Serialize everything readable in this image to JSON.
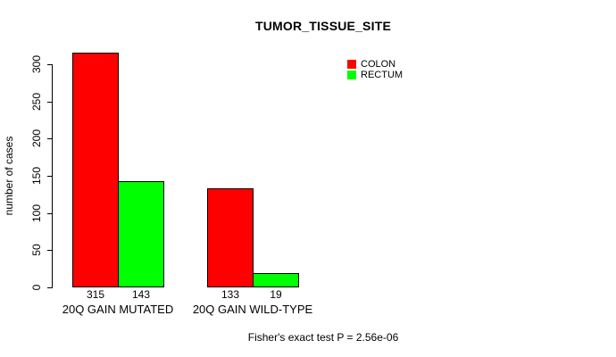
{
  "chart_data": {
    "type": "bar",
    "title": "TUMOR_TISSUE_SITE",
    "ylabel": "number of cases",
    "xlabel": "",
    "categories": [
      "20Q GAIN MUTATED",
      "20Q GAIN WILD-TYPE"
    ],
    "series": [
      {
        "name": "COLON",
        "color": "#ff0000",
        "values": [
          315,
          133
        ]
      },
      {
        "name": "RECTUM",
        "color": "#00ff00",
        "values": [
          143,
          19
        ]
      }
    ],
    "show_values_under_bars": true,
    "ylim": [
      0,
      300
    ],
    "yticks": [
      0,
      50,
      100,
      150,
      200,
      250,
      300
    ],
    "grid": false,
    "legend_position": "top-right",
    "annotation": "Fisher's exact test P = 2.56e-06"
  }
}
